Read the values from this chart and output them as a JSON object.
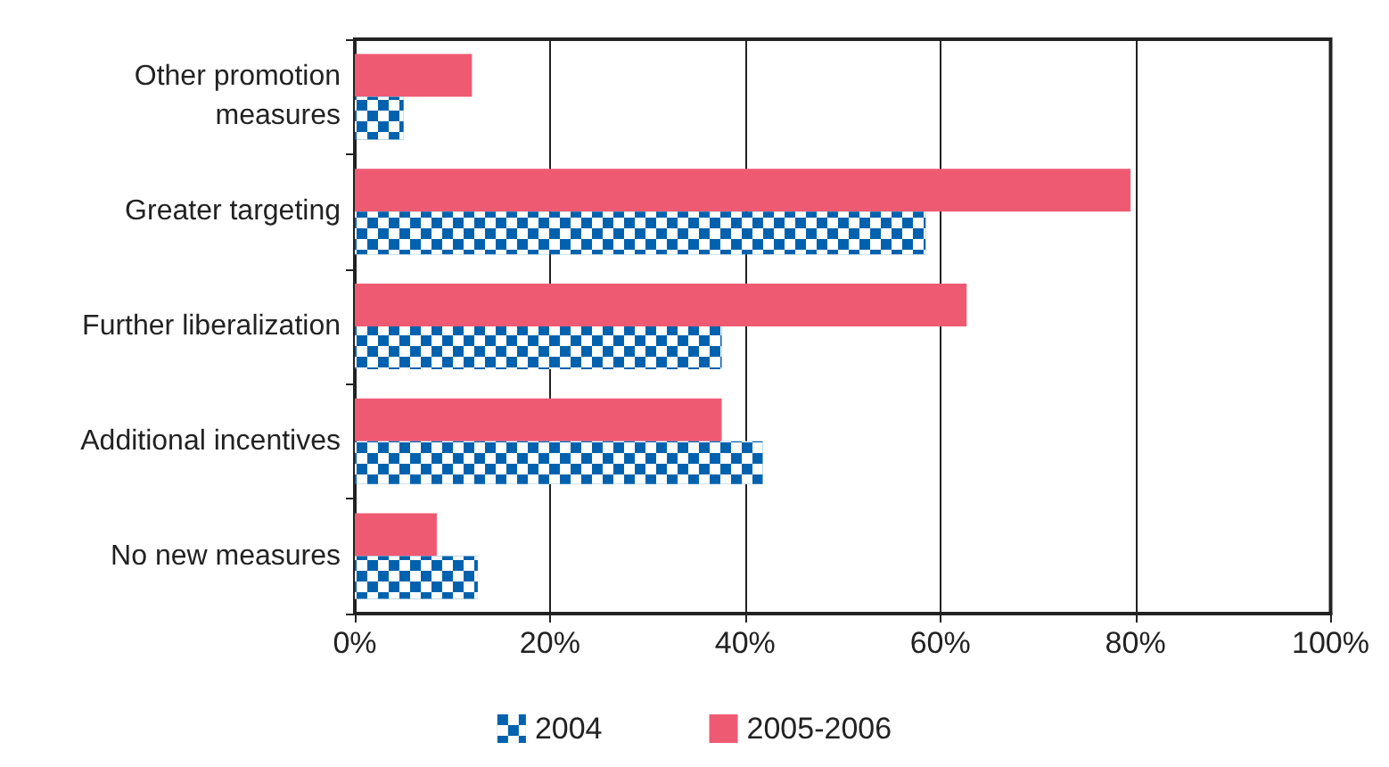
{
  "chart_data": {
    "type": "bar",
    "orientation": "horizontal",
    "categories": [
      "Other promotion\nmeasures",
      "Greater targeting",
      "Further liberalization",
      "Additional incentives",
      "No new measures"
    ],
    "series": [
      {
        "name": "2004",
        "color": "#0062ae",
        "values": [
          5,
          58.5,
          37.6,
          41.8,
          12.6
        ]
      },
      {
        "name": "2005-2006",
        "color": "#ef5a73",
        "values": [
          12,
          79.5,
          62.7,
          37.6,
          8.4
        ]
      }
    ],
    "xlim": [
      0,
      100
    ],
    "xticks": [
      {
        "value": 0,
        "label": "0%"
      },
      {
        "value": 20,
        "label": "20%"
      },
      {
        "value": 40,
        "label": "40%"
      },
      {
        "value": 60,
        "label": "60%"
      },
      {
        "value": 80,
        "label": "80%"
      },
      {
        "value": 100,
        "label": "100%"
      }
    ],
    "grid": "x",
    "legend": "bottom"
  }
}
